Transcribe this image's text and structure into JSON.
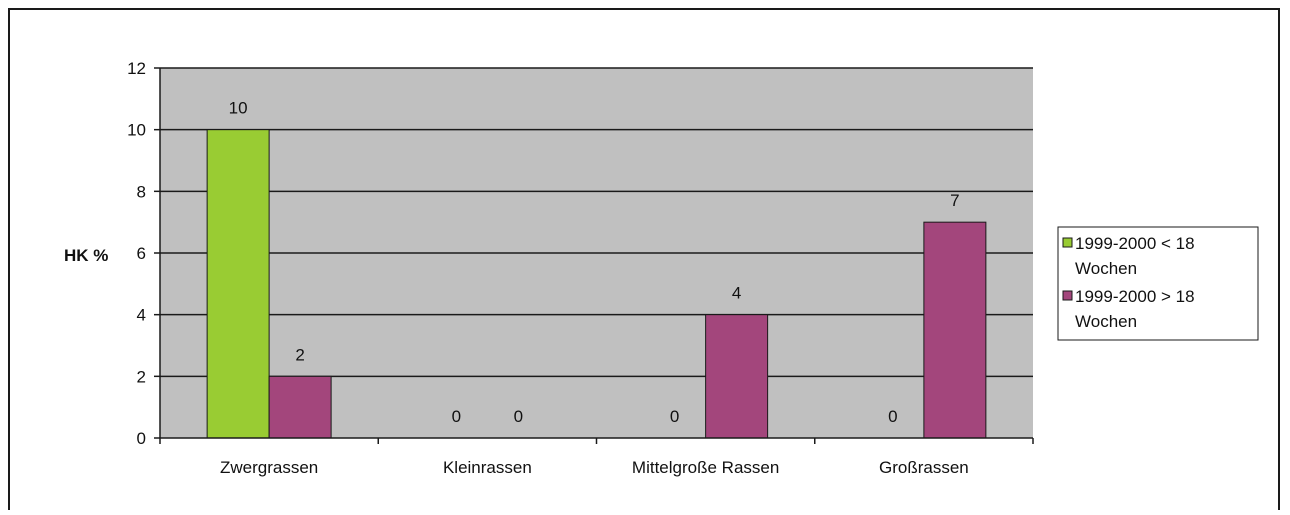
{
  "chart_data": {
    "type": "bar",
    "categories": [
      "Zwergrassen",
      "Kleinrassen",
      "Mittelgroße Rassen",
      "Großrassen"
    ],
    "series": [
      {
        "name": "1999-2000 < 18 Wochen",
        "values": [
          10,
          0,
          0,
          0
        ]
      },
      {
        "name": "1999-2000 > 18 Wochen",
        "values": [
          2,
          0,
          4,
          7
        ]
      }
    ],
    "legend_lines": [
      [
        "1999-2000 < 18",
        "Wochen"
      ],
      [
        "1999-2000 > 18",
        "Wochen"
      ]
    ],
    "ylabel": "HK %",
    "xlabel": "",
    "title": "",
    "ylim": [
      0,
      12
    ],
    "yticks": [
      "0",
      "2",
      "4",
      "6",
      "8",
      "10",
      "12"
    ],
    "grid": true,
    "legend_position": "right",
    "colors": {
      "series": [
        "#99cc33",
        "#a3467c"
      ],
      "plot_background": "#c0c0c0",
      "gridline": "#1a1a1a"
    }
  }
}
